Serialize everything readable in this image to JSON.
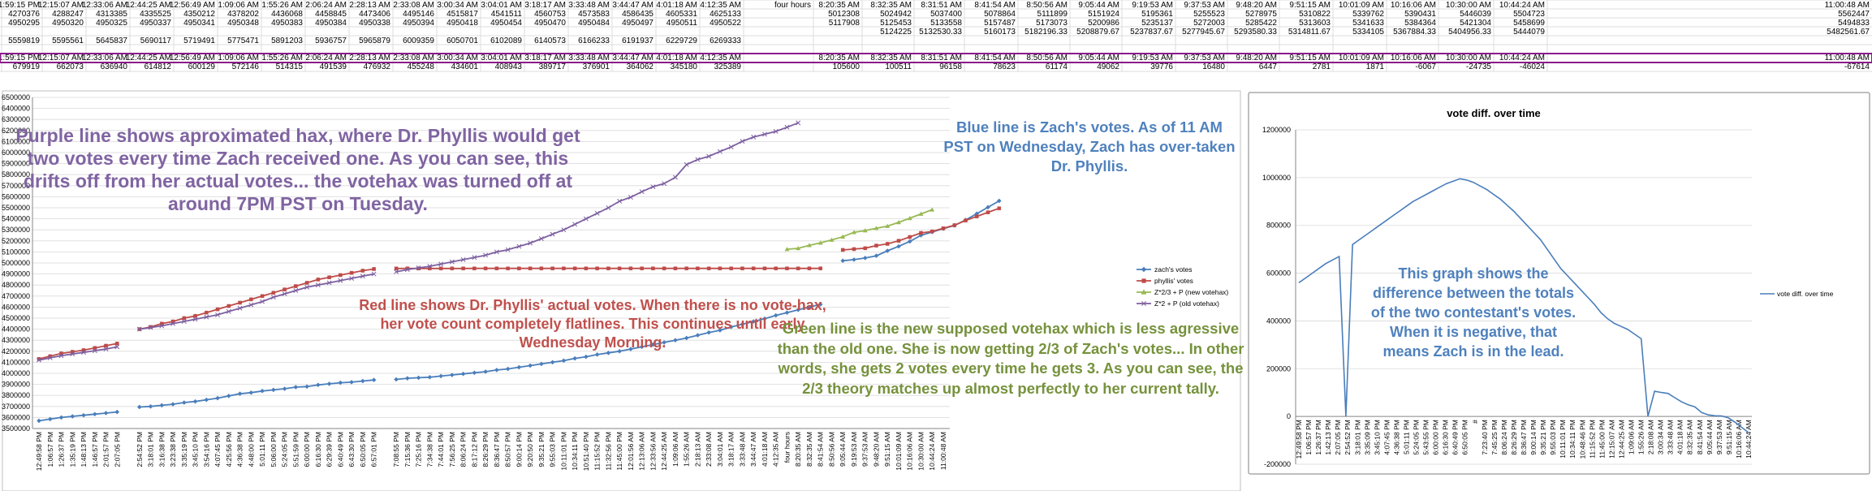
{
  "spreadsheet": {
    "row1": [
      "1:59:15 PM",
      "12:15:07 AM",
      "12:33:06 AM",
      "12:44:25 AM",
      "12:56:49 AM",
      "1:09:06 AM",
      "1:55:26 AM",
      "2:06:24 AM",
      "2:28:13 AM",
      "2:33:08 AM",
      "3:00:34 AM",
      "3:04:01 AM",
      "3:18:17 AM",
      "3:33:48 AM",
      "3:44:47 AM",
      "4:01:18 AM",
      "4:12:35 AM",
      "four hours",
      "8:20:35 AM",
      "8:32:35 AM",
      "8:31:51 AM",
      "8:41:54 AM",
      "8:50:56 AM",
      "9:05:44 AM",
      "9:19:53 AM",
      "9:37:53 AM",
      "9:48:20 AM",
      "9:51:15 AM",
      "10:01:09 AM",
      "10:16:06 AM",
      "10:30:00 AM",
      "10:44:24 AM",
      "11:00:48 AM"
    ],
    "row2": [
      "4270376",
      "4288247",
      "4313385",
      "4335525",
      "4350212",
      "4378202",
      "4436068",
      "4458845",
      "4473406",
      "4495146",
      "4515817",
      "4541511",
      "4560753",
      "4573583",
      "4586435",
      "4605331",
      "4625133",
      "",
      "5012308",
      "5024942",
      "5037400",
      "5078864",
      "5111899",
      "5151924",
      "5195361",
      "5255523",
      "5278975",
      "5310822",
      "5339762",
      "5390431",
      "5446039",
      "5504723",
      "5562447"
    ],
    "row3": [
      "4950295",
      "4950320",
      "4950325",
      "4950337",
      "4950341",
      "4950348",
      "4950383",
      "4950384",
      "4950338",
      "4950394",
      "4950418",
      "4950454",
      "4950470",
      "4950484",
      "4950497",
      "4950511",
      "4950522",
      "",
      "5117908",
      "5125453",
      "5133558",
      "5157487",
      "5173073",
      "5200986",
      "5235137",
      "5272003",
      "5285422",
      "5313603",
      "5341633",
      "5384364",
      "5421304",
      "5458699",
      "5494833"
    ],
    "row4": [
      "",
      "",
      "",
      "",
      "",
      "",
      "",
      "",
      "",
      "",
      "",
      "",
      "",
      "",
      "",
      "",
      "",
      "",
      "",
      "5124225",
      "5132530.33",
      "5160173",
      "5182196.33",
      "5208879.67",
      "5237837.67",
      "5277945.67",
      "5293580.33",
      "5314811.67",
      "5334105",
      "5367884.33",
      "5404956.33",
      "5444079",
      "5482561.67"
    ],
    "row6": [
      "5559819",
      "5595561",
      "5645837",
      "5690117",
      "5719491",
      "5775471",
      "5891203",
      "5936757",
      "5965879",
      "6009359",
      "6050701",
      "6102089",
      "6140573",
      "6166233",
      "6191937",
      "6229729",
      "6269333",
      "",
      "",
      "",
      "",
      "",
      "",
      "",
      "",
      "",
      "",
      "",
      "",
      "",
      "",
      "",
      ""
    ],
    "row7": [
      "1:59:15 PM",
      "12:15:07 AM",
      "12:33:06 AM",
      "12:44:25 AM",
      "12:56:49 AM",
      "1:09:06 AM",
      "1:55:26 AM",
      "2:06:24 AM",
      "2:28:13 AM",
      "2:33:08 AM",
      "3:00:34 AM",
      "3:04:01 AM",
      "3:18:17 AM",
      "3:33:48 AM",
      "3:44:47 AM",
      "4:01:18 AM",
      "4:12:35 AM",
      "",
      "8:20:35 AM",
      "8:32:35 AM",
      "8:31:51 AM",
      "8:41:54 AM",
      "8:50:56 AM",
      "9:05:44 AM",
      "9:19:53 AM",
      "9:37:53 AM",
      "9:48:20 AM",
      "9:51:15 AM",
      "10:01:09 AM",
      "10:16:06 AM",
      "10:30:00 AM",
      "10:44:24 AM",
      "11:00:48 AM"
    ],
    "row8": [
      "679919",
      "662073",
      "636940",
      "614812",
      "600129",
      "572146",
      "514315",
      "491539",
      "476932",
      "455248",
      "434601",
      "408943",
      "389717",
      "376901",
      "364062",
      "345180",
      "325389",
      "",
      "105600",
      "100511",
      "96158",
      "78623",
      "61174",
      "49062",
      "39776",
      "16480",
      "6447",
      "2781",
      "1871",
      "-6067",
      "-24735",
      "-46024",
      "-67614"
    ]
  },
  "annotations": {
    "purple": "Purple line shows aproximated hax, where Dr. Phyllis would get two votes every time Zach received one. As you can see, this drifts off from her actual votes... the votehax was turned off at around 7PM PST on Tuesday.",
    "blue": "Blue line is Zach's votes. As of 11 AM PST on Wednesday, Zach has over-taken Dr. Phyllis.",
    "red": "Red line shows Dr. Phyllis' actual votes. When there is no vote-hax, her vote count completely flatlines. This continues until early Wednesday Morning.",
    "green": "Green line is the new supposed votehax which is less agressive than the old one. She is now getting 2/3 of Zach's votes... In other words, she gets 2 votes every time he gets 3. As you can see, the 2/3 theory matches up almost perfectly to her current tally.",
    "diff": "This graph shows the difference between the totals of the two contestant's votes. When it is negative, that means Zach is in the lead."
  },
  "colors": {
    "zach": "#4a7ebb",
    "phyllis": "#be4b48",
    "new_votehax": "#98b954",
    "old_votehax": "#7d60a0",
    "note_purple": "#8064a2",
    "note_blue": "#4f81bd",
    "note_red": "#c0504d",
    "note_green": "#76923c",
    "note_diff": "#4f81bd",
    "selection": "#8b1a8b"
  },
  "chart_data": [
    {
      "type": "line",
      "title": "",
      "xlabel": "",
      "ylabel": "",
      "ylim": [
        3500000,
        6500000
      ],
      "y_step": 100000,
      "grid": true,
      "legend_placement": "right",
      "x_labels": [
        "12:49:58 PM",
        "1:06:57 PM",
        "1:26:37 PM",
        "1:35:19 PM",
        "1:48:13 PM",
        "1:46:57 PM",
        "2:01:57 PM",
        "2:07:05 PM",
        "",
        "2:54:52 PM",
        "3:18:01 PM",
        "3:16:38 PM",
        "3:23:38 PM",
        "3:35:19 PM",
        "3:45:10 PM",
        "3:54:16 PM",
        "4:07:45 PM",
        "4:25:56 PM",
        "4:36:38 PM",
        "4:48:00 PM",
        "5:01:11 PM",
        "5:06:00 PM",
        "5:24:05 PM",
        "5:51:59 PM",
        "6:00:00 PM",
        "6:16:30 PM",
        "6:29:39 PM",
        "6:40:49 PM",
        "6:43:30 PM",
        "6:50:05 PM",
        "6:57:01 PM",
        "",
        "7:08:55 PM",
        "7:15:36 PM",
        "7:25:16 PM",
        "7:34:38 PM",
        "7:44:01 PM",
        "7:56:25 PM",
        "8:06:24 PM",
        "8:17:12 PM",
        "8:26:29 PM",
        "8:36:47 PM",
        "8:50:57 PM",
        "9:00:14 PM",
        "9:20:50 PM",
        "9:35:21 PM",
        "9:55:03 PM",
        "10:11:01 PM",
        "10:34:11 PM",
        "10:51:40 PM",
        "11:15:52 PM",
        "11:32:56 PM",
        "11:45:00 PM",
        "12:01:56 AM",
        "12:13:06 AM",
        "12:33:56 AM",
        "12:44:25 AM",
        "1:09:06 AM",
        "1:55:26 AM",
        "2:18:13 AM",
        "2:33:08 AM",
        "3:04:01 AM",
        "3:18:17 AM",
        "3:33:48 AM",
        "3:44:47 AM",
        "4:01:18 AM",
        "4:12:35 AM",
        "four hours",
        "8:20:35 AM",
        "8:32:35 AM",
        "8:41:54 AM",
        "8:50:56 AM",
        "9:05:44 AM",
        "9:19:53 AM",
        "9:37:53 AM",
        "9:48:20 AM",
        "9:51:15 AM",
        "10:01:09 AM",
        "10:16:06 AM",
        "10:30:00 AM",
        "10:44:24 AM",
        "11:00:48 AM"
      ],
      "series": [
        {
          "name": "zach's votes",
          "gaps": [
            8,
            31,
            66
          ],
          "values": [
            3570000,
            3585000,
            3600000,
            3610000,
            3620000,
            3630000,
            3640000,
            3650000,
            null,
            3695000,
            3700000,
            3710000,
            3720000,
            3735000,
            3745000,
            3760000,
            3775000,
            3795000,
            3815000,
            3825000,
            3840000,
            3850000,
            3860000,
            3875000,
            3880000,
            3895000,
            3905000,
            3915000,
            3920000,
            3930000,
            3940000,
            null,
            3945000,
            3955000,
            3960000,
            3965000,
            3975000,
            3985000,
            3995000,
            4005000,
            4015000,
            4030000,
            4040000,
            4055000,
            4070000,
            4085000,
            4100000,
            4115000,
            4135000,
            4150000,
            4170000,
            4185000,
            4200000,
            4220000,
            4240000,
            4260000,
            4280000,
            4300000,
            4320000,
            4345000,
            4370000,
            4390000,
            4420000,
            4445000,
            4470000,
            4495000,
            4525000,
            4550000,
            4575000,
            4600000,
            4625000,
            null,
            5020000,
            5030000,
            5045000,
            5065000,
            5110000,
            5150000,
            5195000,
            5250000,
            5280000,
            5310000,
            5340000,
            5390000,
            5446039,
            5504723,
            5562447
          ]
        },
        {
          "name": "phyllis' votes",
          "gaps": [
            8,
            31,
            66
          ],
          "values": [
            4130000,
            4155000,
            4180000,
            4195000,
            4210000,
            4230000,
            4250000,
            4270000,
            null,
            4400000,
            4420000,
            4450000,
            4470000,
            4500000,
            4520000,
            4550000,
            4580000,
            4610000,
            4640000,
            4670000,
            4700000,
            4730000,
            4760000,
            4790000,
            4820000,
            4850000,
            4870000,
            4890000,
            4910000,
            4930000,
            4945000,
            null,
            4950200,
            4950300,
            4950320,
            4950325,
            4950337,
            4950341,
            4950348,
            4950383,
            4950384,
            4950390,
            4950394,
            4950400,
            4950418,
            4950430,
            4950454,
            4950460,
            4950470,
            4950480,
            4950484,
            4950490,
            4950497,
            4950500,
            4950505,
            4950511,
            4950515,
            4950518,
            4950520,
            4950521,
            4950522,
            4950522,
            4950522,
            4950522,
            4950522,
            4950522,
            4950522,
            4950522,
            4950522,
            4950522,
            4950522,
            null,
            5117908,
            5125453,
            5133558,
            5157487,
            5173073,
            5200986,
            5235137,
            5272003,
            5285422,
            5313603,
            5341633,
            5384364,
            5421304,
            5458699,
            5494833
          ]
        },
        {
          "name": "Z*2/3 + P (new votehax)",
          "start_index": 67,
          "values": [
            5124225,
            5132530,
            5160173,
            5182196,
            5208880,
            5237838,
            5277946,
            5293580,
            5314812,
            5334105,
            5367884,
            5404956,
            5444079,
            5482562
          ]
        },
        {
          "name": "Z*2 + P (old votehax)",
          "gaps": [
            8,
            31
          ],
          "values": [
            4120000,
            4140000,
            4160000,
            4175000,
            4190000,
            4205000,
            4220000,
            4240000,
            null,
            4400000,
            4415000,
            4430000,
            4450000,
            4470000,
            4490000,
            4510000,
            4530000,
            4560000,
            4590000,
            4620000,
            4650000,
            4690000,
            4720000,
            4750000,
            4780000,
            4800000,
            4820000,
            4840000,
            4860000,
            4880000,
            4900000,
            null,
            4920000,
            4940000,
            4955000,
            4970000,
            4990000,
            5010000,
            5030000,
            5050000,
            5070000,
            5100000,
            5120000,
            5150000,
            5180000,
            5220000,
            5260000,
            5300000,
            5350000,
            5400000,
            5450000,
            5500000,
            5559819,
            5595561,
            5645837,
            5690117,
            5719491,
            5775471,
            5891203,
            5936757,
            5965879,
            6009359,
            6050701,
            6102089,
            6140573,
            6166233,
            6191937,
            6229729,
            6269333
          ]
        }
      ]
    },
    {
      "type": "line",
      "title": "vote diff. over time",
      "xlabel": "",
      "ylabel": "",
      "ylim": [
        -200000,
        1200000
      ],
      "y_ticks": [
        "-200000",
        "0",
        "200000",
        "400000",
        "600000",
        "800000",
        "1000000",
        "1200000"
      ],
      "grid": true,
      "legend_placement": "right",
      "x_labels": [
        "12:49:58 PM",
        "1:06:57 PM",
        "1:26:37 PM",
        "1:42:13 PM",
        "2:07:05 PM",
        "2:54:52 PM",
        "3:18:01 PM",
        "3:35:09 PM",
        "3:45:10 PM",
        "4:07:45 PM",
        "4:36:38 PM",
        "5:01:11 PM",
        "5:24:05 PM",
        "5:43:55 PM",
        "6:00:00 PM",
        "6:16:30 PM",
        "6:40:49 PM",
        "6:50:05 PM",
        "#",
        "7:23:40 PM",
        "7:45:25 PM",
        "8:06:24 PM",
        "8:26:29 PM",
        "8:36:47 PM",
        "9:00:14 PM",
        "9:35:21 PM",
        "9:55:03 PM",
        "10:11:01 PM",
        "10:34:11 PM",
        "10:48:46 PM",
        "11:15:52 PM",
        "11:45:00 PM",
        "12:15:07 AM",
        "12:44:25 AM",
        "1:09:06 AM",
        "1:55:26 AM",
        "2:18:08 AM",
        "3:00:34 AM",
        "3:33:48 AM",
        "4:01:18 AM",
        "8:32:35 AM",
        "8:41:54 AM",
        "9:05:44 AM",
        "9:37:53 AM",
        "9:51:15 AM",
        "10:16:06 AM",
        "10:44:24 AM"
      ],
      "series": [
        {
          "name": "vote diff. over time",
          "values": [
            560000,
            580000,
            600000,
            620000,
            640000,
            655000,
            670000,
            0,
            720000,
            740000,
            760000,
            780000,
            800000,
            820000,
            840000,
            860000,
            880000,
            900000,
            915000,
            930000,
            945000,
            960000,
            975000,
            985000,
            995000,
            990000,
            980000,
            965000,
            950000,
            930000,
            910000,
            885000,
            860000,
            830000,
            800000,
            770000,
            740000,
            700000,
            660000,
            620000,
            590000,
            560000,
            530000,
            500000,
            470000,
            434601,
            408943,
            389717,
            376901,
            364062,
            345180,
            325389,
            0,
            105600,
            100511,
            96158,
            78623,
            61174,
            49062,
            39776,
            16480,
            6447,
            2781,
            1871,
            -6067,
            -24735,
            -46024,
            -67614
          ]
        }
      ]
    }
  ]
}
